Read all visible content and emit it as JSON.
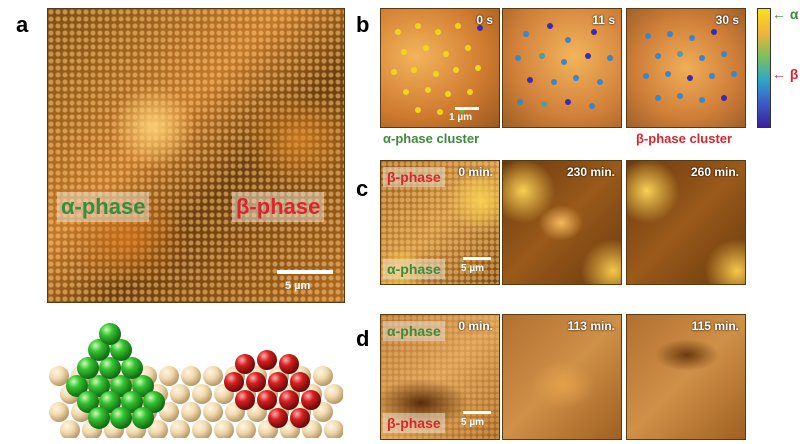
{
  "panels": {
    "a": {
      "letter": "a",
      "alpha_label": "α-phase",
      "beta_label": "β-phase",
      "scalebar": "5 µm"
    },
    "b": {
      "letter": "b",
      "times": [
        "0 s",
        "11 s",
        "30 s"
      ],
      "scalebar": "1 µm",
      "caption_left": "α-phase cluster",
      "caption_right": "β-phase cluster",
      "colorbar_top": "α",
      "colorbar_bottom": "β"
    },
    "c": {
      "letter": "c",
      "times": [
        "0 min.",
        "230 min.",
        "260 min."
      ],
      "beta_label": "β-phase",
      "alpha_label": "α-phase",
      "scalebar": "5 µm"
    },
    "d": {
      "letter": "d",
      "times": [
        "0 min.",
        "113 min.",
        "115 min."
      ],
      "alpha_label": "α-phase",
      "beta_label": "β-phase",
      "scalebar": "5 µm"
    }
  },
  "colors": {
    "alpha_text": "#3f8a3a",
    "beta_text": "#d8262e",
    "alpha_sphere": "#35c132",
    "beta_sphere": "#d62020",
    "substrate": "#f1d9ad"
  }
}
